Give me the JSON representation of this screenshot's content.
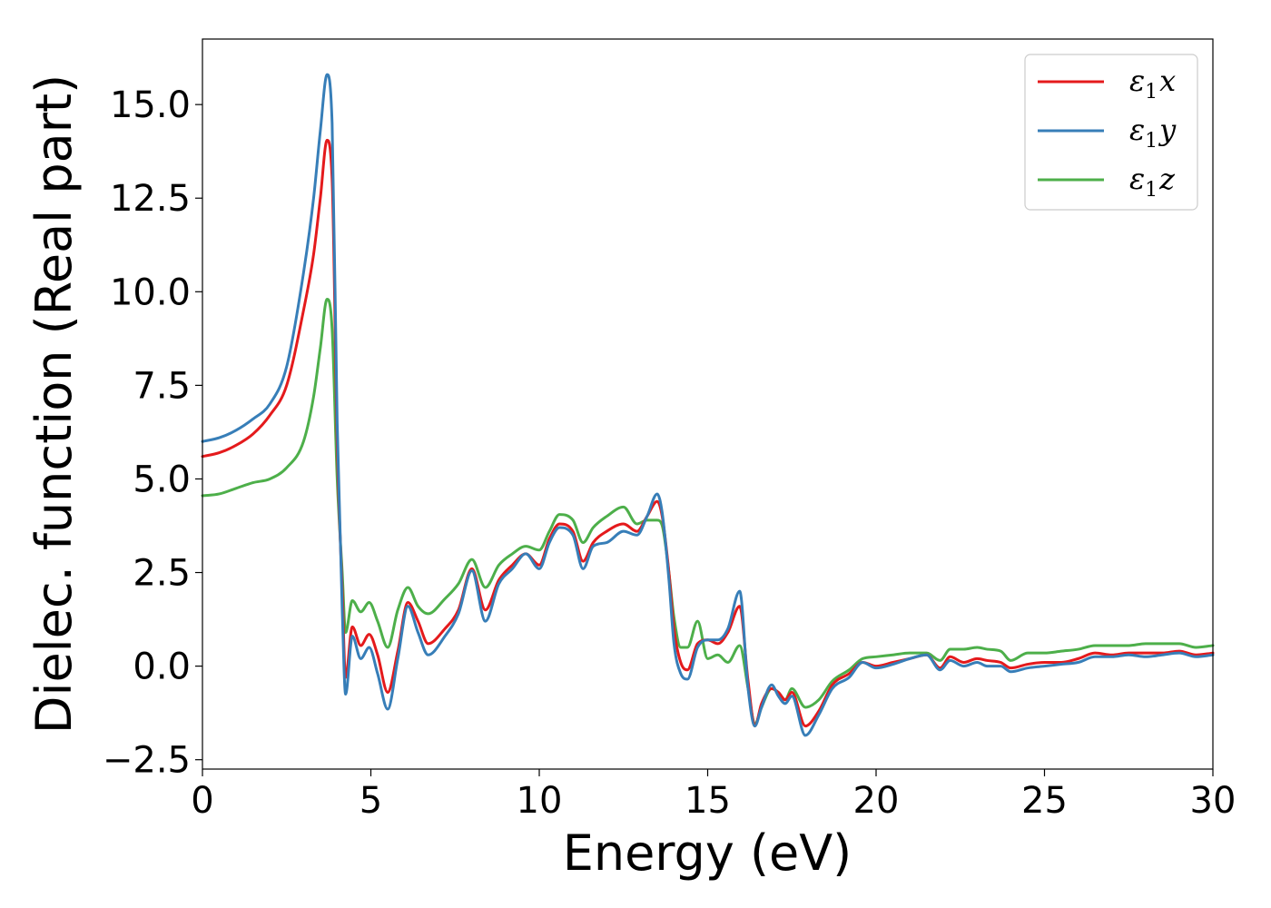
{
  "chart_data": {
    "type": "line",
    "title": "",
    "xlabel": "Energy (eV)",
    "ylabel": "Dielec. function (Real part)",
    "xlim": [
      0,
      30
    ],
    "ylim": [
      -2.75,
      16.75
    ],
    "xticks": [
      0,
      5,
      10,
      15,
      20,
      25,
      30
    ],
    "xtick_labels": [
      "0",
      "5",
      "10",
      "15",
      "20",
      "25",
      "30"
    ],
    "yticks": [
      -2.5,
      0.0,
      2.5,
      5.0,
      7.5,
      10.0,
      12.5,
      15.0
    ],
    "ytick_labels": [
      "−2.5",
      "0.0",
      "2.5",
      "5.0",
      "7.5",
      "10.0",
      "12.5",
      "15.0"
    ],
    "grid": false,
    "legend_position": "top-right",
    "series": [
      {
        "name": "ε₁x",
        "legend_base": "ε",
        "legend_sub": "1",
        "legend_tail": "x",
        "color": "#e41a1c",
        "x": [
          0,
          0.5,
          1,
          1.5,
          2,
          2.5,
          3,
          3.3,
          3.5,
          3.7,
          3.85,
          4.0,
          4.15,
          4.25,
          4.45,
          4.7,
          4.95,
          5.2,
          5.5,
          5.8,
          6.1,
          6.4,
          6.7,
          7.2,
          7.6,
          8.0,
          8.4,
          8.8,
          9.2,
          9.6,
          10.0,
          10.3,
          10.6,
          11.0,
          11.3,
          11.6,
          12.0,
          12.5,
          12.9,
          13.2,
          13.5,
          13.65,
          13.85,
          14.0,
          14.2,
          14.4,
          14.7,
          15.0,
          15.3,
          15.6,
          15.95,
          16.2,
          16.4,
          16.6,
          16.9,
          17.1,
          17.3,
          17.5,
          17.9,
          18.3,
          18.7,
          19.2,
          19.6,
          20.0,
          20.5,
          21.0,
          21.5,
          21.9,
          22.2,
          22.6,
          23.0,
          23.3,
          23.7,
          24.0,
          24.5,
          25.0,
          25.5,
          26.0,
          26.5,
          27.0,
          27.5,
          28.0,
          28.5,
          29.0,
          29.5,
          30.0
        ],
        "y": [
          5.6,
          5.7,
          5.9,
          6.2,
          6.7,
          7.5,
          9.5,
          11.0,
          12.5,
          14.05,
          13.0,
          6.0,
          2.0,
          -0.3,
          1.05,
          0.55,
          0.85,
          0.3,
          -0.7,
          0.4,
          1.7,
          1.2,
          0.6,
          1.0,
          1.5,
          2.6,
          1.5,
          2.3,
          2.7,
          3.0,
          2.7,
          3.4,
          3.8,
          3.6,
          2.8,
          3.3,
          3.6,
          3.8,
          3.6,
          4.0,
          4.4,
          4.0,
          2.5,
          1.0,
          0.1,
          -0.1,
          0.6,
          0.7,
          0.6,
          0.9,
          1.6,
          -0.4,
          -1.6,
          -1.0,
          -0.6,
          -0.7,
          -0.9,
          -0.7,
          -1.6,
          -1.2,
          -0.5,
          -0.2,
          0.1,
          0.0,
          0.1,
          0.2,
          0.3,
          -0.05,
          0.25,
          0.1,
          0.2,
          0.15,
          0.1,
          -0.05,
          0.05,
          0.1,
          0.1,
          0.2,
          0.35,
          0.3,
          0.35,
          0.35,
          0.35,
          0.4,
          0.3,
          0.35
        ]
      },
      {
        "name": "ε₁y",
        "legend_base": "ε",
        "legend_sub": "1",
        "legend_tail": "y",
        "color": "#377eb8",
        "x": [
          0,
          0.5,
          1,
          1.5,
          2,
          2.5,
          3,
          3.3,
          3.5,
          3.7,
          3.85,
          4.0,
          4.15,
          4.25,
          4.45,
          4.7,
          4.95,
          5.2,
          5.5,
          5.8,
          6.1,
          6.4,
          6.7,
          7.2,
          7.6,
          8.0,
          8.4,
          8.8,
          9.2,
          9.6,
          10.0,
          10.3,
          10.6,
          11.0,
          11.3,
          11.6,
          12.0,
          12.5,
          12.9,
          13.2,
          13.5,
          13.65,
          13.85,
          14.0,
          14.2,
          14.4,
          14.7,
          15.0,
          15.3,
          15.6,
          15.95,
          16.2,
          16.4,
          16.6,
          16.9,
          17.1,
          17.3,
          17.5,
          17.9,
          18.3,
          18.7,
          19.2,
          19.6,
          20.0,
          20.5,
          21.0,
          21.5,
          21.9,
          22.2,
          22.6,
          23.0,
          23.3,
          23.7,
          24.0,
          24.5,
          25.0,
          25.5,
          26.0,
          26.5,
          27.0,
          27.5,
          28.0,
          28.5,
          29.0,
          29.5,
          30.0
        ],
        "y": [
          6.0,
          6.1,
          6.3,
          6.6,
          7.0,
          8.0,
          10.5,
          12.5,
          14.3,
          15.8,
          14.5,
          6.5,
          1.5,
          -0.75,
          0.8,
          0.2,
          0.5,
          -0.2,
          -1.15,
          0.2,
          1.6,
          0.9,
          0.3,
          0.8,
          1.4,
          2.55,
          1.2,
          2.2,
          2.6,
          3.0,
          2.6,
          3.3,
          3.7,
          3.5,
          2.6,
          3.2,
          3.3,
          3.6,
          3.5,
          4.0,
          4.6,
          4.1,
          2.3,
          0.6,
          -0.2,
          -0.35,
          0.5,
          0.7,
          0.7,
          1.0,
          2.0,
          -0.6,
          -1.6,
          -1.1,
          -0.5,
          -0.8,
          -1.0,
          -0.8,
          -1.85,
          -1.3,
          -0.6,
          -0.3,
          0.1,
          -0.05,
          0.05,
          0.2,
          0.3,
          -0.1,
          0.15,
          0.0,
          0.1,
          0.0,
          0.0,
          -0.15,
          -0.05,
          0.0,
          0.05,
          0.1,
          0.25,
          0.25,
          0.3,
          0.25,
          0.3,
          0.35,
          0.25,
          0.3
        ]
      },
      {
        "name": "ε₁z",
        "legend_base": "ε",
        "legend_sub": "1",
        "legend_tail": "z",
        "color": "#4daf4a",
        "x": [
          0,
          0.5,
          1,
          1.5,
          2,
          2.5,
          3,
          3.3,
          3.5,
          3.7,
          3.85,
          4.0,
          4.15,
          4.25,
          4.45,
          4.7,
          4.95,
          5.2,
          5.5,
          5.8,
          6.1,
          6.4,
          6.7,
          7.2,
          7.6,
          8.0,
          8.4,
          8.8,
          9.2,
          9.6,
          10.0,
          10.3,
          10.6,
          11.0,
          11.3,
          11.6,
          12.0,
          12.5,
          12.9,
          13.2,
          13.5,
          13.65,
          13.85,
          14.0,
          14.2,
          14.4,
          14.7,
          15.0,
          15.3,
          15.6,
          15.95,
          16.2,
          16.4,
          16.6,
          16.9,
          17.1,
          17.3,
          17.5,
          17.9,
          18.3,
          18.7,
          19.2,
          19.6,
          20.0,
          20.5,
          21.0,
          21.5,
          21.9,
          22.2,
          22.6,
          23.0,
          23.3,
          23.7,
          24.0,
          24.5,
          25.0,
          25.5,
          26.0,
          26.5,
          27.0,
          27.5,
          28.0,
          28.5,
          29.0,
          29.5,
          30.0
        ],
        "y": [
          4.55,
          4.6,
          4.75,
          4.9,
          5.0,
          5.3,
          6.0,
          7.2,
          8.5,
          9.8,
          9.0,
          5.0,
          2.5,
          0.9,
          1.75,
          1.45,
          1.7,
          1.2,
          0.5,
          1.5,
          2.1,
          1.6,
          1.4,
          1.8,
          2.2,
          2.85,
          2.1,
          2.7,
          3.0,
          3.2,
          3.1,
          3.6,
          4.05,
          3.9,
          3.3,
          3.7,
          4.0,
          4.25,
          3.8,
          3.9,
          3.9,
          3.75,
          2.5,
          1.3,
          0.5,
          0.5,
          1.2,
          0.2,
          0.3,
          0.1,
          0.55,
          -0.6,
          -1.55,
          -1.1,
          -0.6,
          -0.7,
          -0.9,
          -0.6,
          -1.1,
          -0.9,
          -0.4,
          -0.1,
          0.2,
          0.25,
          0.3,
          0.35,
          0.35,
          0.15,
          0.45,
          0.45,
          0.5,
          0.45,
          0.4,
          0.15,
          0.35,
          0.35,
          0.4,
          0.45,
          0.55,
          0.55,
          0.55,
          0.6,
          0.6,
          0.6,
          0.5,
          0.55
        ]
      }
    ]
  }
}
